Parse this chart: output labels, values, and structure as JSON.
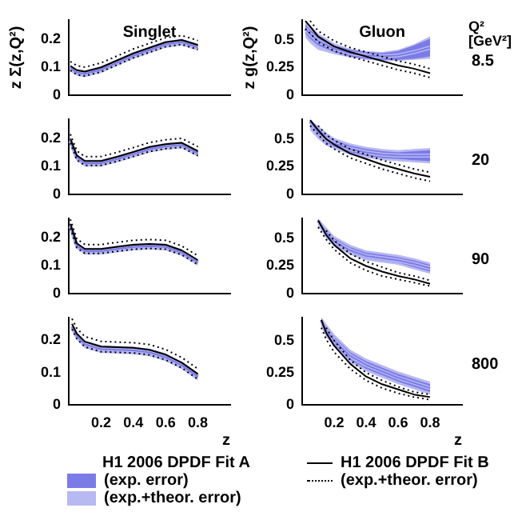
{
  "chart_data": [
    {
      "type": "line",
      "title": "Singlet",
      "ylabel": "z Σ(z,Q²)",
      "xlim": [
        0,
        1
      ],
      "xticks": [
        0.2,
        0.4,
        0.6,
        0.8
      ],
      "ylim": [
        0,
        0.27
      ],
      "yticks": [
        0,
        0.1,
        0.2
      ],
      "tick_labels": "y",
      "grid": false,
      "x": [
        0.01,
        0.05,
        0.1,
        0.2,
        0.3,
        0.4,
        0.5,
        0.6,
        0.7,
        0.8
      ],
      "series": [
        {
          "color": "#b8b8f2",
          "values": [
            0.097,
            0.082,
            0.077,
            0.092,
            0.117,
            0.142,
            0.162,
            0.182,
            0.19,
            0.172
          ],
          "lower": [
            0.085,
            0.07,
            0.065,
            0.08,
            0.105,
            0.13,
            0.15,
            0.17,
            0.178,
            0.16
          ],
          "upper": [
            0.109,
            0.094,
            0.089,
            0.104,
            0.129,
            0.154,
            0.174,
            0.194,
            0.202,
            0.184
          ]
        },
        {
          "color": "#7b7be8",
          "values": [
            0.097,
            0.082,
            0.077,
            0.092,
            0.117,
            0.142,
            0.162,
            0.182,
            0.19,
            0.172
          ],
          "lower": [
            0.091,
            0.076,
            0.071,
            0.086,
            0.111,
            0.136,
            0.156,
            0.176,
            0.184,
            0.166
          ],
          "upper": [
            0.103,
            0.088,
            0.083,
            0.098,
            0.123,
            0.148,
            0.168,
            0.188,
            0.196,
            0.178
          ]
        },
        {
          "color": "#000000",
          "line_style": "solid",
          "values": [
            0.105,
            0.09,
            0.085,
            0.1,
            0.125,
            0.15,
            0.17,
            0.19,
            0.198,
            0.18
          ]
        },
        {
          "color": "#000000",
          "line_style": "dotted",
          "values": [
            0.121,
            0.106,
            0.101,
            0.116,
            0.141,
            0.166,
            0.186,
            0.206,
            0.214,
            0.196
          ]
        },
        {
          "color": "#000000",
          "line_style": "dotted",
          "values": [
            0.089,
            0.074,
            0.069,
            0.084,
            0.109,
            0.134,
            0.154,
            0.174,
            0.182,
            0.164
          ]
        }
      ]
    },
    {
      "type": "line",
      "title": "Gluon",
      "ylabel": "z g(z,Q²)",
      "annotations": [
        "Q²",
        "[GeV²]",
        "8.5"
      ],
      "xlim": [
        0,
        1
      ],
      "xticks": [
        0.2,
        0.4,
        0.6,
        0.8
      ],
      "ylim": [
        0,
        0.68
      ],
      "yticks": [
        0,
        0.25,
        0.5
      ],
      "tick_labels": "y",
      "grid": false,
      "x": [
        0.02,
        0.05,
        0.1,
        0.2,
        0.3,
        0.4,
        0.5,
        0.6,
        0.7,
        0.8
      ],
      "series": [
        {
          "color": "#b8b8f2",
          "values": [
            0.6,
            0.55,
            0.49,
            0.42,
            0.38,
            0.36,
            0.35,
            0.36,
            0.39,
            0.43
          ],
          "lower": [
            0.52,
            0.47,
            0.41,
            0.37,
            0.34,
            0.32,
            0.31,
            0.31,
            0.32,
            0.33
          ],
          "upper": [
            0.67,
            0.63,
            0.56,
            0.47,
            0.42,
            0.4,
            0.39,
            0.41,
            0.46,
            0.53
          ]
        },
        {
          "color": "#7b7be8",
          "values": [
            0.6,
            0.55,
            0.49,
            0.42,
            0.38,
            0.36,
            0.35,
            0.36,
            0.39,
            0.43
          ],
          "lower": [
            0.56,
            0.51,
            0.45,
            0.39,
            0.35,
            0.33,
            0.32,
            0.32,
            0.33,
            0.35
          ],
          "upper": [
            0.64,
            0.59,
            0.53,
            0.45,
            0.41,
            0.39,
            0.38,
            0.4,
            0.45,
            0.51
          ]
        },
        {
          "color": "#000000",
          "line_style": "solid",
          "values": [
            0.67,
            0.62,
            0.53,
            0.44,
            0.39,
            0.35,
            0.31,
            0.27,
            0.24,
            0.2
          ]
        },
        {
          "color": "#000000",
          "line_style": "dotted",
          "values": [
            null,
            0.67,
            0.58,
            0.49,
            0.43,
            0.39,
            0.35,
            0.31,
            0.28,
            0.24
          ]
        },
        {
          "color": "#000000",
          "line_style": "dotted",
          "values": [
            0.6,
            0.56,
            0.48,
            0.4,
            0.35,
            0.31,
            0.27,
            0.23,
            0.2,
            0.16
          ]
        }
      ]
    },
    {
      "type": "line",
      "xlim": [
        0,
        1
      ],
      "xticks": [
        0.2,
        0.4,
        0.6,
        0.8
      ],
      "ylim": [
        0,
        0.27
      ],
      "yticks": [
        0,
        0.1,
        0.2
      ],
      "tick_labels": "y",
      "grid": false,
      "x": [
        0.01,
        0.05,
        0.1,
        0.2,
        0.3,
        0.4,
        0.5,
        0.6,
        0.7,
        0.8
      ],
      "series": [
        {
          "color": "#b8b8f2",
          "values": [
            0.192,
            0.132,
            0.112,
            0.112,
            0.127,
            0.144,
            0.162,
            0.172,
            0.177,
            0.147
          ],
          "lower": [
            0.18,
            0.12,
            0.1,
            0.1,
            0.115,
            0.132,
            0.15,
            0.16,
            0.165,
            0.135
          ],
          "upper": [
            0.204,
            0.144,
            0.124,
            0.124,
            0.139,
            0.156,
            0.174,
            0.184,
            0.189,
            0.159
          ]
        },
        {
          "color": "#7b7be8",
          "values": [
            0.192,
            0.132,
            0.112,
            0.112,
            0.127,
            0.144,
            0.162,
            0.172,
            0.177,
            0.147
          ],
          "lower": [
            0.186,
            0.126,
            0.106,
            0.106,
            0.121,
            0.138,
            0.156,
            0.166,
            0.171,
            0.141
          ],
          "upper": [
            0.198,
            0.138,
            0.118,
            0.118,
            0.133,
            0.15,
            0.168,
            0.178,
            0.183,
            0.153
          ]
        },
        {
          "color": "#000000",
          "line_style": "solid",
          "values": [
            0.2,
            0.14,
            0.12,
            0.12,
            0.135,
            0.152,
            0.17,
            0.18,
            0.185,
            0.155
          ]
        },
        {
          "color": "#000000",
          "line_style": "dotted",
          "values": [
            0.216,
            0.156,
            0.136,
            0.136,
            0.151,
            0.168,
            0.186,
            0.196,
            0.201,
            0.171
          ]
        },
        {
          "color": "#000000",
          "line_style": "dotted",
          "values": [
            0.184,
            0.124,
            0.104,
            0.104,
            0.119,
            0.136,
            0.154,
            0.164,
            0.169,
            0.139
          ]
        }
      ]
    },
    {
      "type": "line",
      "annotations": [
        "20"
      ],
      "xlim": [
        0,
        1
      ],
      "xticks": [
        0.2,
        0.4,
        0.6,
        0.8
      ],
      "ylim": [
        0,
        0.68
      ],
      "yticks": [
        0,
        0.25,
        0.5
      ],
      "tick_labels": "y",
      "grid": false,
      "x": [
        0.05,
        0.1,
        0.15,
        0.2,
        0.3,
        0.4,
        0.5,
        0.6,
        0.7,
        0.8
      ],
      "series": [
        {
          "color": "#b8b8f2",
          "values": [
            0.66,
            0.56,
            0.5,
            0.46,
            0.41,
            0.38,
            0.36,
            0.35,
            0.35,
            0.35
          ],
          "lower": [
            0.58,
            0.5,
            0.44,
            0.41,
            0.36,
            0.33,
            0.31,
            0.3,
            0.29,
            0.28
          ],
          "upper": [
            0.675,
            0.62,
            0.56,
            0.51,
            0.46,
            0.43,
            0.41,
            0.4,
            0.41,
            0.42
          ]
        },
        {
          "color": "#7b7be8",
          "values": [
            0.66,
            0.56,
            0.5,
            0.46,
            0.41,
            0.38,
            0.36,
            0.35,
            0.35,
            0.35
          ],
          "lower": [
            0.62,
            0.53,
            0.47,
            0.43,
            0.38,
            0.35,
            0.33,
            0.32,
            0.31,
            0.3
          ],
          "upper": [
            0.67,
            0.59,
            0.53,
            0.49,
            0.44,
            0.41,
            0.39,
            0.38,
            0.39,
            0.4
          ]
        },
        {
          "color": "#000000",
          "line_style": "solid",
          "values": [
            0.67,
            0.58,
            0.5,
            0.45,
            0.37,
            0.32,
            0.27,
            0.23,
            0.19,
            0.16
          ]
        },
        {
          "color": "#000000",
          "line_style": "dotted",
          "values": [
            null,
            0.62,
            0.54,
            0.49,
            0.41,
            0.36,
            0.31,
            0.27,
            0.23,
            0.2
          ]
        },
        {
          "color": "#000000",
          "line_style": "dotted",
          "values": [
            0.62,
            0.54,
            0.46,
            0.41,
            0.33,
            0.28,
            0.23,
            0.19,
            0.15,
            0.12
          ]
        }
      ]
    },
    {
      "type": "line",
      "xlim": [
        0,
        1
      ],
      "xticks": [
        0.2,
        0.4,
        0.6,
        0.8
      ],
      "ylim": [
        0,
        0.27
      ],
      "yticks": [
        0,
        0.1,
        0.2
      ],
      "tick_labels": "y",
      "grid": false,
      "x": [
        0.01,
        0.05,
        0.1,
        0.2,
        0.3,
        0.4,
        0.5,
        0.6,
        0.7,
        0.8
      ],
      "series": [
        {
          "color": "#b8b8f2",
          "values": [
            0.242,
            0.172,
            0.152,
            0.152,
            0.16,
            0.167,
            0.17,
            0.167,
            0.147,
            0.112
          ],
          "lower": [
            0.23,
            0.16,
            0.14,
            0.14,
            0.148,
            0.155,
            0.158,
            0.155,
            0.135,
            0.1
          ],
          "upper": [
            0.254,
            0.184,
            0.164,
            0.164,
            0.172,
            0.179,
            0.182,
            0.179,
            0.159,
            0.124
          ]
        },
        {
          "color": "#7b7be8",
          "values": [
            0.242,
            0.172,
            0.152,
            0.152,
            0.16,
            0.167,
            0.17,
            0.167,
            0.147,
            0.112
          ],
          "lower": [
            0.236,
            0.166,
            0.146,
            0.146,
            0.154,
            0.161,
            0.164,
            0.161,
            0.141,
            0.106
          ],
          "upper": [
            0.248,
            0.178,
            0.158,
            0.158,
            0.166,
            0.173,
            0.176,
            0.173,
            0.153,
            0.118
          ]
        },
        {
          "color": "#000000",
          "line_style": "solid",
          "values": [
            0.25,
            0.18,
            0.16,
            0.16,
            0.168,
            0.175,
            0.178,
            0.175,
            0.155,
            0.12
          ]
        },
        {
          "color": "#000000",
          "line_style": "dotted",
          "values": [
            0.266,
            0.196,
            0.176,
            0.176,
            0.184,
            0.191,
            0.194,
            0.191,
            0.171,
            0.136
          ]
        },
        {
          "color": "#000000",
          "line_style": "dotted",
          "values": [
            0.234,
            0.164,
            0.144,
            0.144,
            0.152,
            0.159,
            0.162,
            0.159,
            0.139,
            0.104
          ]
        }
      ]
    },
    {
      "type": "line",
      "annotations": [
        "90"
      ],
      "xlim": [
        0,
        1
      ],
      "xticks": [
        0.2,
        0.4,
        0.6,
        0.8
      ],
      "ylim": [
        0,
        0.68
      ],
      "yticks": [
        0,
        0.25,
        0.5
      ],
      "tick_labels": "y",
      "grid": false,
      "x": [
        0.1,
        0.15,
        0.2,
        0.3,
        0.4,
        0.5,
        0.6,
        0.7,
        0.8
      ],
      "series": [
        {
          "color": "#b8b8f2",
          "values": [
            0.66,
            0.55,
            0.47,
            0.39,
            0.34,
            0.32,
            0.3,
            0.27,
            0.23
          ],
          "lower": [
            0.61,
            0.5,
            0.43,
            0.35,
            0.3,
            0.28,
            0.26,
            0.22,
            0.18
          ],
          "upper": [
            0.675,
            0.6,
            0.52,
            0.44,
            0.39,
            0.37,
            0.35,
            0.32,
            0.28
          ]
        },
        {
          "color": "#7b7be8",
          "values": [
            0.66,
            0.55,
            0.47,
            0.39,
            0.34,
            0.32,
            0.3,
            0.27,
            0.23
          ],
          "lower": [
            0.63,
            0.52,
            0.45,
            0.37,
            0.32,
            0.3,
            0.28,
            0.24,
            0.2
          ],
          "upper": [
            0.67,
            0.58,
            0.5,
            0.42,
            0.37,
            0.35,
            0.33,
            0.3,
            0.26
          ]
        },
        {
          "color": "#000000",
          "line_style": "solid",
          "values": [
            0.66,
            0.53,
            0.44,
            0.32,
            0.25,
            0.2,
            0.16,
            0.13,
            0.09
          ]
        },
        {
          "color": "#000000",
          "line_style": "dotted",
          "values": [
            null,
            0.57,
            0.48,
            0.36,
            0.29,
            0.24,
            0.19,
            0.16,
            0.12
          ]
        },
        {
          "color": "#000000",
          "line_style": "dotted",
          "values": [
            0.6,
            0.49,
            0.4,
            0.28,
            0.21,
            0.16,
            0.13,
            0.1,
            0.07
          ]
        }
      ]
    },
    {
      "type": "line",
      "xlabel": "z",
      "legend": "bottom",
      "legend_title": "H1 2006 DPDF Fit A",
      "xlim": [
        0,
        1
      ],
      "xticks": [
        0.2,
        0.4,
        0.6,
        0.8
      ],
      "ylim": [
        0,
        0.27
      ],
      "yticks": [
        0,
        0.1,
        0.2
      ],
      "grid": false,
      "x": [
        0.02,
        0.05,
        0.1,
        0.2,
        0.3,
        0.4,
        0.5,
        0.6,
        0.7,
        0.8
      ],
      "series": [
        {
          "name": "(exp.+theor. error)",
          "color": "#b8b8f2",
          "values": [
            0.242,
            0.212,
            0.187,
            0.172,
            0.17,
            0.168,
            0.162,
            0.147,
            0.122,
            0.087
          ],
          "lower": [
            0.23,
            0.2,
            0.175,
            0.16,
            0.158,
            0.156,
            0.15,
            0.135,
            0.11,
            0.075
          ],
          "upper": [
            0.254,
            0.224,
            0.199,
            0.184,
            0.182,
            0.18,
            0.174,
            0.159,
            0.134,
            0.099
          ]
        },
        {
          "name": "(exp. error)",
          "color": "#7b7be8",
          "values": [
            0.242,
            0.212,
            0.187,
            0.172,
            0.17,
            0.168,
            0.162,
            0.147,
            0.122,
            0.087
          ],
          "lower": [
            0.236,
            0.206,
            0.181,
            0.166,
            0.164,
            0.162,
            0.156,
            0.141,
            0.116,
            0.081
          ],
          "upper": [
            0.248,
            0.218,
            0.193,
            0.178,
            0.176,
            0.174,
            0.168,
            0.153,
            0.128,
            0.093
          ]
        },
        {
          "name": "H1 2006 DPDF Fit B",
          "color": "#000000",
          "line_style": "solid",
          "values": [
            0.25,
            0.22,
            0.195,
            0.18,
            0.178,
            0.176,
            0.17,
            0.155,
            0.13,
            0.095
          ]
        },
        {
          "name": "(exp.+theor. error)",
          "color": "#000000",
          "line_style": "dotted",
          "values": [
            0.266,
            0.236,
            0.211,
            0.196,
            0.194,
            0.192,
            0.186,
            0.171,
            0.146,
            0.111
          ]
        },
        {
          "color": "#000000",
          "line_style": "dotted",
          "values": [
            0.234,
            0.204,
            0.179,
            0.164,
            0.162,
            0.16,
            0.154,
            0.139,
            0.114,
            0.079
          ]
        }
      ]
    },
    {
      "type": "line",
      "xlabel": "z",
      "annotations": [
        "800"
      ],
      "xlim": [
        0,
        1
      ],
      "xticks": [
        0.2,
        0.4,
        0.6,
        0.8
      ],
      "ylim": [
        0,
        0.68
      ],
      "yticks": [
        0,
        0.25,
        0.5
      ],
      "grid": false,
      "x": [
        0.12,
        0.15,
        0.2,
        0.3,
        0.4,
        0.5,
        0.6,
        0.7,
        0.8
      ],
      "series": [
        {
          "color": "#b8b8f2",
          "values": [
            0.66,
            0.58,
            0.5,
            0.38,
            0.31,
            0.26,
            0.21,
            0.17,
            0.13
          ],
          "lower": [
            0.61,
            0.53,
            0.45,
            0.33,
            0.26,
            0.21,
            0.16,
            0.12,
            0.08
          ],
          "upper": [
            0.679,
            0.63,
            0.55,
            0.43,
            0.36,
            0.31,
            0.26,
            0.22,
            0.18
          ]
        },
        {
          "color": "#7b7be8",
          "values": [
            0.66,
            0.58,
            0.5,
            0.38,
            0.31,
            0.26,
            0.21,
            0.17,
            0.13
          ],
          "lower": [
            0.63,
            0.55,
            0.47,
            0.35,
            0.28,
            0.23,
            0.18,
            0.14,
            0.1
          ],
          "upper": [
            0.675,
            0.61,
            0.53,
            0.41,
            0.34,
            0.29,
            0.24,
            0.2,
            0.16
          ]
        },
        {
          "color": "#000000",
          "line_style": "solid",
          "values": [
            0.66,
            0.56,
            0.46,
            0.32,
            0.22,
            0.16,
            0.12,
            0.08,
            0.06
          ]
        },
        {
          "color": "#000000",
          "line_style": "dotted",
          "values": [
            null,
            0.6,
            0.5,
            0.35,
            0.25,
            0.19,
            0.14,
            0.1,
            0.08
          ]
        },
        {
          "color": "#000000",
          "line_style": "dotted",
          "values": [
            0.6,
            0.51,
            0.41,
            0.28,
            0.19,
            0.13,
            0.09,
            0.06,
            0.04
          ]
        }
      ]
    }
  ]
}
